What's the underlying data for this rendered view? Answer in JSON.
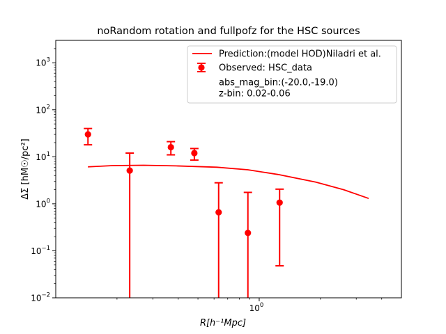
{
  "chart_data": {
    "type": "line",
    "title": "noRandom rotation and fullpofz for the HSC sources",
    "xlabel": "R[h⁻¹Mpc]",
    "ylabel": "ΔΣ [hM☉/pc²]",
    "xscale": "log",
    "yscale": "log",
    "xlim": [
      0.1,
      5.0
    ],
    "ylim": [
      0.01,
      3000
    ],
    "x_ticks": [
      {
        "value": 1.0,
        "label": "10",
        "exp": "0"
      }
    ],
    "y_ticks": [
      {
        "value": 0.01,
        "label": "10",
        "exp": "−2"
      },
      {
        "value": 0.1,
        "label": "10",
        "exp": "−1"
      },
      {
        "value": 1,
        "label": "10",
        "exp": "0"
      },
      {
        "value": 10,
        "label": "10",
        "exp": "1"
      },
      {
        "value": 100,
        "label": "10",
        "exp": "2"
      },
      {
        "value": 1000,
        "label": "10",
        "exp": "3"
      }
    ],
    "color": "#ff0000",
    "legend_position": "top-right",
    "series": [
      {
        "name": "Prediction:(model HOD)Niladri et al.",
        "kind": "line",
        "x": [
          0.144,
          0.19,
          0.27,
          0.39,
          0.62,
          0.88,
          1.24,
          1.9,
          2.6,
          3.45
        ],
        "y": [
          6.1,
          6.5,
          6.6,
          6.4,
          6.0,
          5.3,
          4.2,
          2.9,
          2.0,
          1.3
        ]
      },
      {
        "name": "Observed: HSC_data",
        "kind": "errorbar",
        "x": [
          0.144,
          0.231,
          0.368,
          0.48,
          0.632,
          0.88,
          1.26
        ],
        "y": [
          30,
          5.1,
          16,
          12,
          0.66,
          0.24,
          1.06
        ],
        "yerr_low": [
          18,
          0.001,
          11,
          8.5,
          0.001,
          0.001,
          0.048
        ],
        "yerr_high": [
          40,
          12,
          21,
          15,
          2.8,
          1.75,
          2.05
        ]
      }
    ],
    "legend": {
      "entries": [
        "Prediction:(model HOD)Niladri et al.",
        "Observed: HSC_data"
      ],
      "extra_text": [
        "abs_mag_bin:(-20.0,-19.0)",
        "z-bin: 0.02-0.06"
      ]
    }
  }
}
